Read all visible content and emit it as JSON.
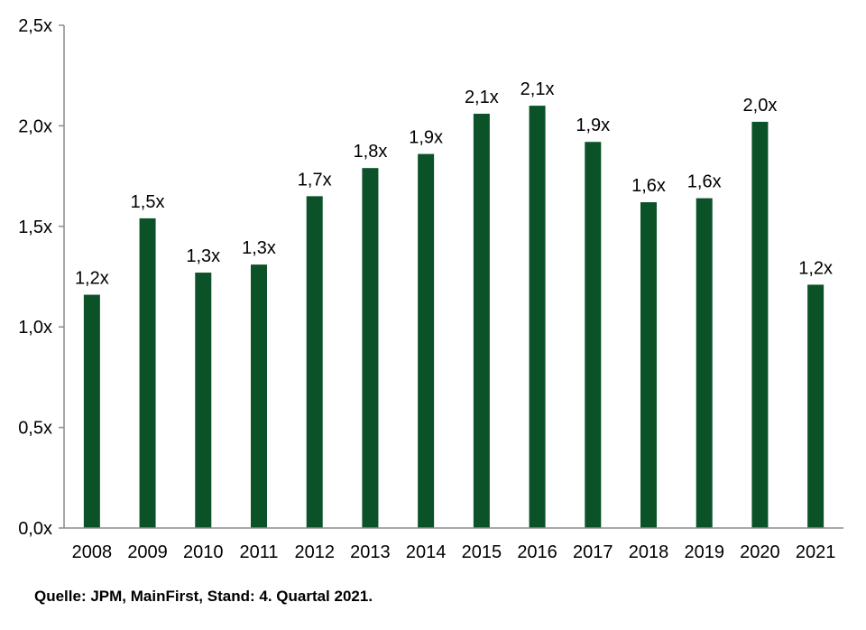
{
  "chart_data": {
    "type": "bar",
    "title": "",
    "xlabel": "",
    "ylabel": "",
    "categories": [
      "2008",
      "2009",
      "2010",
      "2011",
      "2012",
      "2013",
      "2014",
      "2015",
      "2016",
      "2017",
      "2018",
      "2019",
      "2020",
      "2021"
    ],
    "values": [
      1.16,
      1.54,
      1.27,
      1.31,
      1.65,
      1.79,
      1.86,
      2.06,
      2.1,
      1.92,
      1.62,
      1.64,
      2.02,
      1.21
    ],
    "data_labels": [
      "1,2x",
      "1,5x",
      "1,3x",
      "1,3x",
      "1,7x",
      "1,8x",
      "1,9x",
      "2,1x",
      "2,1x",
      "1,9x",
      "1,6x",
      "1,6x",
      "2,0x",
      "1,2x"
    ],
    "ylim": [
      0,
      2.5
    ],
    "yticks": [
      0,
      0.5,
      1.0,
      1.5,
      2.0,
      2.5
    ],
    "ytick_labels": [
      "0,0x",
      "0,5x",
      "1,0x",
      "1,5x",
      "2,0x",
      "2,5x"
    ],
    "grid": false,
    "bar_color": "#0b5228"
  },
  "source_note": "Quelle: JPM, MainFirst, Stand: 4. Quartal 2021."
}
